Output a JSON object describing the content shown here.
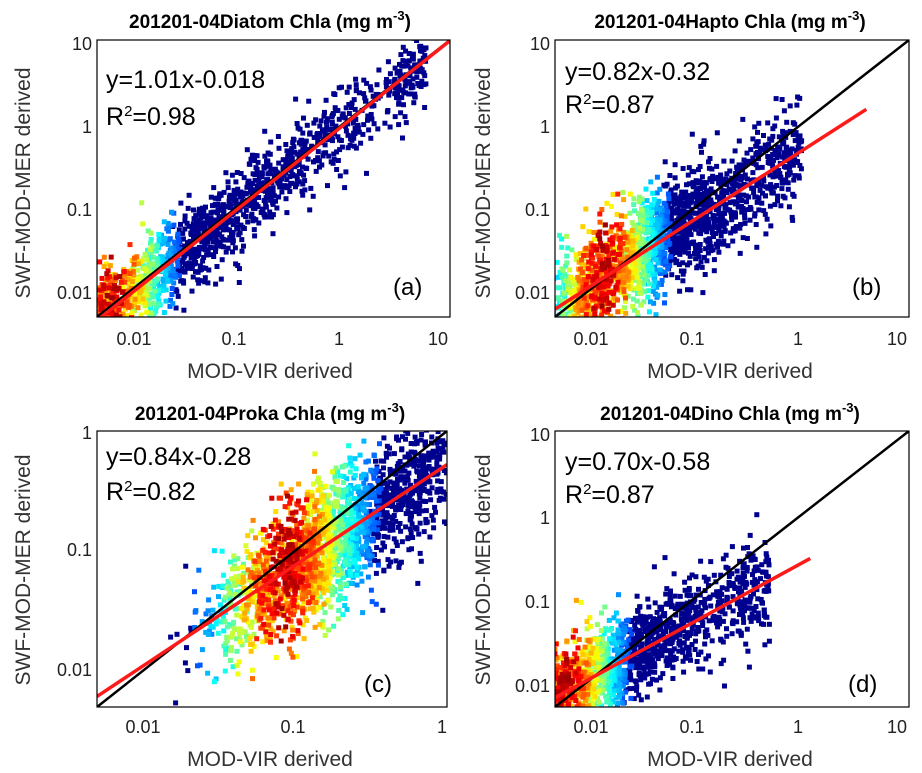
{
  "figure": {
    "panels": [
      {
        "id": "a",
        "title": "201201-04Diatom Chla (mg m",
        "title_exp": "-3",
        "title_close": ")",
        "equation": "y=1.01x-0.018",
        "r2_prefix": "R",
        "r2_exp": "2",
        "r2_value": "=0.98",
        "letter": "(a)",
        "xlabel": "MOD-VIR derived",
        "ylabel": "SWF-MOD-MER derived",
        "x_ticks": [
          "0.01",
          "0.1",
          "1",
          "10"
        ],
        "y_ticks": [
          "0.01",
          "0.1",
          "1",
          "10"
        ]
      },
      {
        "id": "b",
        "title": "201201-04Hapto Chla (mg m",
        "title_exp": "-3",
        "title_close": ")",
        "equation": "y=0.82x-0.32",
        "r2_prefix": "R",
        "r2_exp": "2",
        "r2_value": "=0.87",
        "letter": "(b)",
        "xlabel": "MOD-VIR derived",
        "ylabel": "SWF-MOD-MER derived",
        "x_ticks": [
          "0.01",
          "0.1",
          "1",
          "10"
        ],
        "y_ticks": [
          "0.01",
          "0.1",
          "1",
          "10"
        ]
      },
      {
        "id": "c",
        "title": "201201-04Proka Chla (mg m",
        "title_exp": "-3",
        "title_close": ")",
        "equation": "y=0.84x-0.28",
        "r2_prefix": "R",
        "r2_exp": "2",
        "r2_value": "=0.82",
        "letter": "(c)",
        "xlabel": "MOD-VIR derived",
        "ylabel": "SWF-MOD-MER derived",
        "x_ticks": [
          "0.01",
          "0.1",
          "1"
        ],
        "y_ticks": [
          "0.01",
          "0.1",
          "1"
        ]
      },
      {
        "id": "d",
        "title": "201201-04Dino Chla (mg m",
        "title_exp": "-3",
        "title_close": ")",
        "equation": "y=0.70x-0.58",
        "r2_prefix": "R",
        "r2_exp": "2",
        "r2_value": "=0.87",
        "letter": "(d)",
        "xlabel": "MOD-VIR derived",
        "ylabel": "SWF-MOD-MER derived",
        "x_ticks": [
          "0.01",
          "0.1",
          "1",
          "10"
        ],
        "y_ticks": [
          "0.01",
          "0.1",
          "1",
          "10"
        ]
      }
    ]
  },
  "colors": {
    "one_to_one_line": "#000000",
    "fit_line": "#ff1a1a",
    "density_low": "#00008f",
    "density_high": "#d4001a"
  },
  "chart_data": [
    {
      "type": "scatter",
      "scale": "log-log",
      "xlim": [
        0.005,
        10
      ],
      "ylim": [
        0.005,
        10
      ],
      "grid": false,
      "one_to_one": true,
      "fit": {
        "slope": 1.01,
        "intercept": -0.018,
        "r2": 0.98,
        "x_range": [
          0.005,
          10
        ]
      },
      "cloud": {
        "center_x": 0.006,
        "center_y": 0.006,
        "x_max": 6,
        "spread": 0.5,
        "dense_center_x": 0.007
      },
      "points": 1800
    },
    {
      "type": "scatter",
      "scale": "log-log",
      "xlim": [
        0.005,
        10
      ],
      "ylim": [
        0.005,
        10
      ],
      "grid": false,
      "one_to_one": true,
      "fit": {
        "slope": 0.82,
        "intercept": -0.32,
        "r2": 0.87,
        "x_range": [
          0.005,
          4
        ]
      },
      "cloud": {
        "center_x": 0.014,
        "center_y": 0.014,
        "x_max": 1,
        "spread": 0.65,
        "dense_center_x": 0.014
      },
      "points": 2000
    },
    {
      "type": "scatter",
      "scale": "log-log",
      "xlim": [
        0.005,
        1
      ],
      "ylim": [
        0.005,
        1
      ],
      "grid": false,
      "one_to_one": true,
      "fit": {
        "slope": 0.84,
        "intercept": -0.28,
        "r2": 0.82,
        "x_range": [
          0.005,
          1
        ]
      },
      "cloud": {
        "center_x": 0.08,
        "center_y": 0.06,
        "x_max": 1,
        "spread": 0.55,
        "dense_center_x": 0.085
      },
      "points": 2200
    },
    {
      "type": "scatter",
      "scale": "log-log",
      "xlim": [
        0.005,
        10
      ],
      "ylim": [
        0.005,
        10
      ],
      "grid": false,
      "one_to_one": true,
      "fit": {
        "slope": 0.7,
        "intercept": -0.58,
        "r2": 0.87,
        "x_range": [
          0.005,
          1.2
        ]
      },
      "cloud": {
        "center_x": 0.006,
        "center_y": 0.007,
        "x_max": 0.5,
        "spread": 0.6,
        "dense_center_x": 0.006
      },
      "points": 1700
    }
  ]
}
